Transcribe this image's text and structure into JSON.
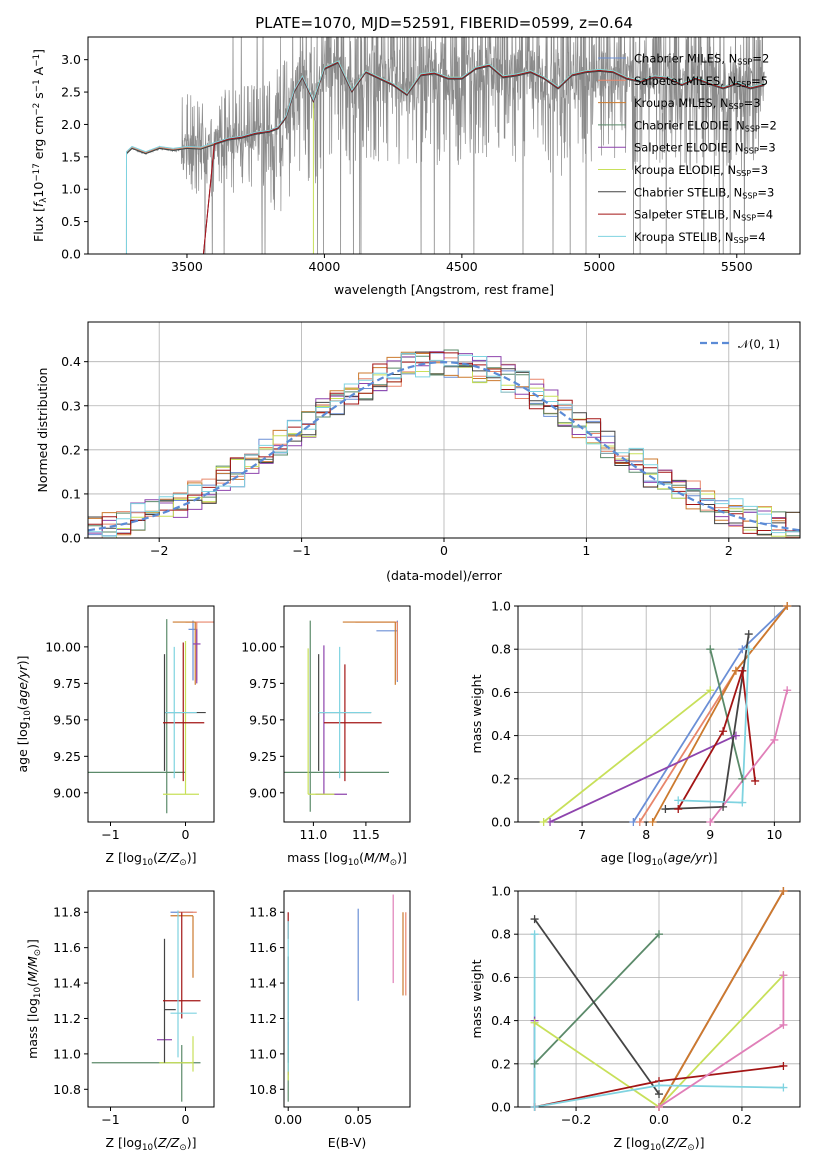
{
  "title": "PLATE=1070, MJD=52591, FIBERID=0599, z=0.64",
  "colors": {
    "data": "#8a8a8a",
    "gaussian": "#5b8bd6",
    "grid": "#b0b0b0"
  },
  "models": [
    {
      "name": "Chabrier MILES, N_SSP=2",
      "base": "Chabrier MILES, N",
      "sub": "SSP",
      "tail": "=2",
      "color": "#6b8fd6"
    },
    {
      "name": "Salpeter MILES, N_SSP=5",
      "base": "Salpeter MILES, N",
      "sub": "SSP",
      "tail": "=5",
      "color": "#e8866b"
    },
    {
      "name": "Kroupa MILES, N_SSP=3",
      "base": "Kroupa MILES, N",
      "sub": "SSP",
      "tail": "=3",
      "color": "#cc7a2e"
    },
    {
      "name": "Chabrier ELODIE, N_SSP=2",
      "base": "Chabrier ELODIE, N",
      "sub": "SSP",
      "tail": "=2",
      "color": "#5b8a6a"
    },
    {
      "name": "Salpeter ELODIE, N_SSP=3",
      "base": "Salpeter ELODIE, N",
      "sub": "SSP",
      "tail": "=3",
      "color": "#8e44ad"
    },
    {
      "name": "Kroupa ELODIE, N_SSP=3",
      "base": "Kroupa ELODIE, N",
      "sub": "SSP",
      "tail": "=3",
      "color": "#c8e05a"
    },
    {
      "name": "Chabrier STELIB, N_SSP=3",
      "base": "Chabrier STELIB, N",
      "sub": "SSP",
      "tail": "=3",
      "color": "#444444"
    },
    {
      "name": "Salpeter STELIB, N_SSP=4",
      "base": "Salpeter STELIB, N",
      "sub": "SSP",
      "tail": "=4",
      "color": "#a31515"
    },
    {
      "name": "Kroupa STELIB, N_SSP=4",
      "base": "Kroupa STELIB, N",
      "sub": "SSP",
      "tail": "=4",
      "color": "#7fd3e0"
    }
  ],
  "chart_data": [
    {
      "id": "spectrum",
      "type": "line",
      "title": "PLATE=1070, MJD=52591, FIBERID=0599, z=0.64",
      "xlabel": "wavelength [Angstrom, rest frame]",
      "ylabel": "Flux [f_λ 10^-17 erg cm^-2 s^-1 A^-1]",
      "xlim": [
        3140,
        5730
      ],
      "ylim": [
        0,
        3.35
      ],
      "xticks": [
        3500,
        4000,
        4500,
        5000,
        5500
      ],
      "yticks": [
        0.0,
        0.5,
        1.0,
        1.5,
        2.0,
        2.5,
        3.0
      ],
      "grid": false,
      "legend": "right",
      "model_continuum": [
        [
          3280,
          1.55
        ],
        [
          3300,
          1.63
        ],
        [
          3350,
          1.55
        ],
        [
          3400,
          1.63
        ],
        [
          3450,
          1.6
        ],
        [
          3500,
          1.63
        ],
        [
          3550,
          1.62
        ],
        [
          3600,
          1.69
        ],
        [
          3650,
          1.76
        ],
        [
          3700,
          1.79
        ],
        [
          3750,
          1.85
        ],
        [
          3800,
          1.88
        ],
        [
          3830,
          1.93
        ],
        [
          3860,
          2.1
        ],
        [
          3890,
          2.5
        ],
        [
          3920,
          2.72
        ],
        [
          3960,
          2.35
        ],
        [
          4000,
          2.85
        ],
        [
          4050,
          2.95
        ],
        [
          4100,
          2.5
        ],
        [
          4150,
          2.8
        ],
        [
          4200,
          2.7
        ],
        [
          4250,
          2.6
        ],
        [
          4300,
          2.45
        ],
        [
          4350,
          2.75
        ],
        [
          4400,
          2.78
        ],
        [
          4450,
          2.7
        ],
        [
          4500,
          2.7
        ],
        [
          4550,
          2.85
        ],
        [
          4600,
          2.9
        ],
        [
          4650,
          2.72
        ],
        [
          4700,
          2.75
        ],
        [
          4750,
          2.8
        ],
        [
          4800,
          2.7
        ],
        [
          4850,
          2.55
        ],
        [
          4900,
          2.75
        ],
        [
          4950,
          2.8
        ],
        [
          5000,
          2.82
        ],
        [
          5050,
          2.8
        ],
        [
          5100,
          2.7
        ],
        [
          5150,
          2.65
        ],
        [
          5200,
          2.72
        ],
        [
          5250,
          2.7
        ],
        [
          5300,
          2.6
        ],
        [
          5350,
          2.7
        ],
        [
          5400,
          2.62
        ],
        [
          5450,
          2.55
        ],
        [
          5500,
          2.62
        ],
        [
          5550,
          2.55
        ],
        [
          5600,
          2.6
        ]
      ],
      "model_start_wavelengths": [
        3280,
        3280,
        3560,
        3280,
        3560,
        3960,
        3280,
        3560,
        3280
      ]
    },
    {
      "id": "residuals",
      "type": "step",
      "xlabel": "(data-model)/error",
      "ylabel": "Normed distribution",
      "xlim": [
        -2.5,
        2.5
      ],
      "ylim": [
        0,
        0.49
      ],
      "xticks": [
        -2,
        -1,
        0,
        1,
        2
      ],
      "yticks": [
        0.0,
        0.1,
        0.2,
        0.3,
        0.4
      ],
      "grid": true,
      "legend": "top-right",
      "gaussian_label": "𝒩(0, 1)",
      "bin_width": 0.1
    },
    {
      "id": "age_vs_Z",
      "type": "errorbar",
      "xlabel": "Z [log10(Z/Z☉)]",
      "ylabel": "age [log10(age/yr)]",
      "xlim": [
        -1.3,
        0.38
      ],
      "ylim": [
        8.8,
        10.28
      ],
      "xticks": [
        -1,
        0
      ],
      "yticks": [
        9.0,
        9.25,
        9.5,
        9.75,
        10.0
      ],
      "points": [
        {
          "m": 0,
          "x": 0.1,
          "y": 10.12,
          "xe": [
            0.06,
            0.06
          ],
          "ye": [
            0.35,
            0.06
          ]
        },
        {
          "m": 1,
          "x": 0.15,
          "y": 10.17,
          "xe": [
            0.15,
            0.35
          ],
          "ye": [
            0.4,
            0.0
          ]
        },
        {
          "m": 2,
          "x": 0.13,
          "y": 10.17,
          "xe": [
            0.3,
            0.0
          ],
          "ye": [
            0.43,
            0.0
          ]
        },
        {
          "m": 3,
          "x": -0.25,
          "y": 9.14,
          "xe": [
            1.15,
            0.25
          ],
          "ye": [
            0.28,
            1.05
          ]
        },
        {
          "m": 4,
          "x": 0.15,
          "y": 10.02,
          "xe": [
            0.05,
            0.05
          ],
          "ye": [
            0.27,
            0.1
          ]
        },
        {
          "m": 5,
          "x": 0.0,
          "y": 8.99,
          "xe": [
            0.3,
            0.18
          ],
          "ye": [
            0.0,
            1.05
          ]
        },
        {
          "m": 6,
          "x": -0.28,
          "y": 9.55,
          "xe": [
            0.0,
            0.55
          ],
          "ye": [
            0.4,
            0.4
          ]
        },
        {
          "m": 7,
          "x": -0.03,
          "y": 9.48,
          "xe": [
            0.27,
            0.28
          ],
          "ye": [
            0.4,
            0.55
          ]
        },
        {
          "m": 8,
          "x": -0.15,
          "y": 9.55,
          "xe": [
            0.12,
            0.3
          ],
          "ye": [
            0.45,
            0.45
          ]
        }
      ]
    },
    {
      "id": "age_vs_mass",
      "type": "errorbar",
      "xlabel": "mass [log10(M/M☉)]",
      "ylabel": "",
      "xlim": [
        10.72,
        11.92
      ],
      "ylim": [
        8.8,
        10.28
      ],
      "xticks": [
        11.0,
        11.5
      ],
      "yticks": [
        9.0,
        9.25,
        9.5,
        9.75,
        10.0
      ],
      "points": [
        {
          "m": 0,
          "x": 11.8,
          "y": 10.11,
          "xe": [
            0.2,
            0.0
          ],
          "ye": [
            0.35,
            0.07
          ]
        },
        {
          "m": 1,
          "x": 11.8,
          "y": 10.17,
          "xe": [
            0.4,
            0.0
          ],
          "ye": [
            0.4,
            0.0
          ]
        },
        {
          "m": 2,
          "x": 11.78,
          "y": 10.17,
          "xe": [
            0.5,
            0.0
          ],
          "ye": [
            0.43,
            0.0
          ]
        },
        {
          "m": 3,
          "x": 10.97,
          "y": 9.14,
          "xe": [
            0.25,
            0.75
          ],
          "ye": [
            0.27,
            1.04
          ]
        },
        {
          "m": 4,
          "x": 11.1,
          "y": 8.99,
          "xe": [
            0.08,
            0.22
          ],
          "ye": [
            0.0,
            1.02
          ]
        },
        {
          "m": 5,
          "x": 10.95,
          "y": 8.99,
          "xe": [
            0.0,
            0.25
          ],
          "ye": [
            0.0,
            1.0
          ]
        },
        {
          "m": 6,
          "x": 11.05,
          "y": 9.55,
          "xe": [
            0.0,
            0.5
          ],
          "ye": [
            0.4,
            0.4
          ]
        },
        {
          "m": 7,
          "x": 11.3,
          "y": 9.48,
          "xe": [
            0.2,
            0.35
          ],
          "ye": [
            0.4,
            0.4
          ]
        },
        {
          "m": 8,
          "x": 11.25,
          "y": 9.55,
          "xe": [
            0.2,
            0.3
          ],
          "ye": [
            0.45,
            0.45
          ]
        }
      ]
    },
    {
      "id": "mass_weight_vs_age",
      "type": "line",
      "xlabel": "age [log10(age/yr)]",
      "ylabel": "mass weight",
      "xlim": [
        6.0,
        10.4
      ],
      "ylim": [
        0,
        1.0
      ],
      "xticks": [
        7,
        8,
        9,
        10
      ],
      "yticks": [
        0.0,
        0.2,
        0.4,
        0.6,
        0.8,
        1.0
      ],
      "grid": true,
      "series": [
        {
          "m": 0,
          "x": [
            7.8,
            9.5,
            10.2
          ],
          "y": [
            0.0,
            0.8,
            1.0
          ]
        },
        {
          "m": 1,
          "x": [
            7.9,
            9.4,
            10.2
          ],
          "y": [
            0.0,
            0.7,
            1.0
          ]
        },
        {
          "m": 2,
          "x": [
            8.1,
            9.4,
            10.2
          ],
          "y": [
            0.0,
            0.7,
            1.0
          ]
        },
        {
          "m": 3,
          "x": [
            9.0,
            9.5
          ],
          "y": [
            0.8,
            0.2
          ]
        },
        {
          "m": 4,
          "x": [
            6.5,
            9.4
          ],
          "y": [
            0.0,
            0.4
          ]
        },
        {
          "m": 5,
          "x": [
            6.4,
            9.0
          ],
          "y": [
            0.0,
            0.61
          ]
        },
        {
          "m": 6,
          "x": [
            8.3,
            9.2,
            9.6
          ],
          "y": [
            0.06,
            0.07,
            0.87
          ]
        },
        {
          "m": 7,
          "x": [
            8.5,
            9.2,
            9.5,
            9.7
          ],
          "y": [
            0.06,
            0.42,
            0.7,
            0.19
          ]
        },
        {
          "m": 8,
          "x": [
            8.5,
            9.5,
            9.6
          ],
          "y": [
            0.1,
            0.09,
            0.8
          ]
        },
        {
          "m": "pink",
          "x": [
            9.0,
            10.0,
            10.2
          ],
          "y": [
            0.0,
            0.38,
            0.61
          ]
        }
      ]
    },
    {
      "id": "mass_vs_Z",
      "type": "errorbar",
      "xlabel": "Z [log10(Z/Z☉)]",
      "ylabel": "mass [log10(M/M☉)]",
      "xlim": [
        -1.3,
        0.38
      ],
      "ylim": [
        10.7,
        11.92
      ],
      "xticks": [
        -1,
        0
      ],
      "yticks": [
        10.8,
        11.0,
        11.2,
        11.4,
        11.6,
        11.8
      ],
      "points": [
        {
          "m": 0,
          "x": 0.1,
          "y": 11.8,
          "xe": [
            0.3,
            0.0
          ],
          "ye": [
            0.0,
            0.0
          ]
        },
        {
          "m": 1,
          "x": 0.15,
          "y": 11.8,
          "xe": [
            0.25,
            0.0
          ],
          "ye": [
            0.0,
            0.0
          ]
        },
        {
          "m": 2,
          "x": 0.1,
          "y": 11.78,
          "xe": [
            0.3,
            0.0
          ],
          "ye": [
            0.35,
            0.0
          ]
        },
        {
          "m": 3,
          "x": -0.05,
          "y": 10.95,
          "xe": [
            1.2,
            0.25
          ],
          "ye": [
            0.22,
            0.1
          ]
        },
        {
          "m": 4,
          "x": -0.18,
          "y": 11.08,
          "xe": [
            0.2,
            0.0
          ],
          "ye": [
            0.0,
            0.0
          ]
        },
        {
          "m": 5,
          "x": 0.1,
          "y": 10.95,
          "xe": [
            0.45,
            0.0
          ],
          "ye": [
            0.05,
            0.15
          ]
        },
        {
          "m": 6,
          "x": -0.28,
          "y": 11.25,
          "xe": [
            0.0,
            0.15
          ],
          "ye": [
            0.3,
            0.4
          ]
        },
        {
          "m": 7,
          "x": -0.05,
          "y": 11.3,
          "xe": [
            0.25,
            0.25
          ],
          "ye": [
            0.1,
            0.5
          ]
        },
        {
          "m": 8,
          "x": -0.1,
          "y": 11.23,
          "xe": [
            0.1,
            0.25
          ],
          "ye": [
            0.25,
            0.58
          ]
        }
      ]
    },
    {
      "id": "mass_vs_EBV",
      "type": "errorbar",
      "xlabel": "E(B-V)",
      "ylabel": "",
      "xlim": [
        -0.003,
        0.087
      ],
      "ylim": [
        10.7,
        11.92
      ],
      "xticks": [
        0.0,
        0.05
      ],
      "yticks": [
        10.8,
        11.0,
        11.2,
        11.4,
        11.6,
        11.8
      ],
      "points": [
        {
          "m": 0,
          "x": 0.05,
          "y": 11.55,
          "xe": [
            0,
            0
          ],
          "ye": [
            0.25,
            0.27
          ]
        },
        {
          "m": 1,
          "x": 0.084,
          "y": 11.55,
          "xe": [
            0,
            0
          ],
          "ye": [
            0.22,
            0.25
          ]
        },
        {
          "m": 2,
          "x": 0.082,
          "y": 11.55,
          "xe": [
            0,
            0
          ],
          "ye": [
            0.22,
            0.25
          ]
        },
        {
          "m": 3,
          "x": 0.0,
          "y": 10.93,
          "xe": [
            0,
            0
          ],
          "ye": [
            0.2,
            0.1
          ]
        },
        {
          "m": 4,
          "x": 0.0,
          "y": 11.08,
          "xe": [
            0,
            0
          ],
          "ye": [
            0.2,
            0.1
          ]
        },
        {
          "m": 5,
          "x": 0.0,
          "y": 10.95,
          "xe": [
            0,
            0
          ],
          "ye": [
            0.1,
            0.1
          ]
        },
        {
          "m": 6,
          "x": 0.0,
          "y": 11.25,
          "xe": [
            0,
            0
          ],
          "ye": [
            0.3,
            0.3
          ]
        },
        {
          "m": 7,
          "x": 0.0,
          "y": 11.7,
          "xe": [
            0,
            0
          ],
          "ye": [
            0.05,
            0.1
          ]
        },
        {
          "m": 8,
          "x": 0.0,
          "y": 11.2,
          "xe": [
            0,
            0
          ],
          "ye": [
            0.3,
            0.55
          ]
        },
        {
          "m": "pink",
          "x": 0.075,
          "y": 11.65,
          "xe": [
            0,
            0
          ],
          "ye": [
            0.25,
            0.25
          ]
        }
      ]
    },
    {
      "id": "mass_weight_vs_Z",
      "type": "line",
      "xlabel": "Z [log10(Z/Z☉)]",
      "ylabel": "mass weight",
      "xlim": [
        -0.34,
        0.34
      ],
      "ylim": [
        0,
        1.0
      ],
      "xticks": [
        -0.2,
        0.0,
        0.2
      ],
      "yticks": [
        0.0,
        0.2,
        0.4,
        0.6,
        0.8,
        1.0
      ],
      "grid": true,
      "series": [
        {
          "m": 0,
          "x": [
            0.0,
            0.3
          ],
          "y": [
            0.0,
            1.0
          ]
        },
        {
          "m": 1,
          "x": [
            0.0,
            0.3
          ],
          "y": [
            0.0,
            1.0
          ]
        },
        {
          "m": 2,
          "x": [
            0.0,
            0.3
          ],
          "y": [
            0.0,
            1.0
          ]
        },
        {
          "m": 3,
          "x": [
            -0.3,
            0.0
          ],
          "y": [
            0.2,
            0.8
          ]
        },
        {
          "m": 4,
          "x": [
            -0.3,
            -0.3
          ],
          "y": [
            0.0,
            0.4
          ]
        },
        {
          "m": 5,
          "x": [
            -0.3,
            0.0,
            0.3
          ],
          "y": [
            0.39,
            0.0,
            0.61
          ]
        },
        {
          "m": 6,
          "x": [
            -0.3,
            0.0
          ],
          "y": [
            0.87,
            0.06
          ]
        },
        {
          "m": 7,
          "x": [
            -0.3,
            0.0,
            0.3
          ],
          "y": [
            0.0,
            0.12,
            0.19
          ]
        },
        {
          "m": 8,
          "x": [
            -0.3,
            -0.3,
            0.0,
            0.3
          ],
          "y": [
            0.8,
            0.0,
            0.1,
            0.09
          ]
        },
        {
          "m": "pink",
          "x": [
            0.0,
            0.3,
            0.3
          ],
          "y": [
            0.0,
            0.38,
            0.61
          ]
        }
      ]
    }
  ]
}
